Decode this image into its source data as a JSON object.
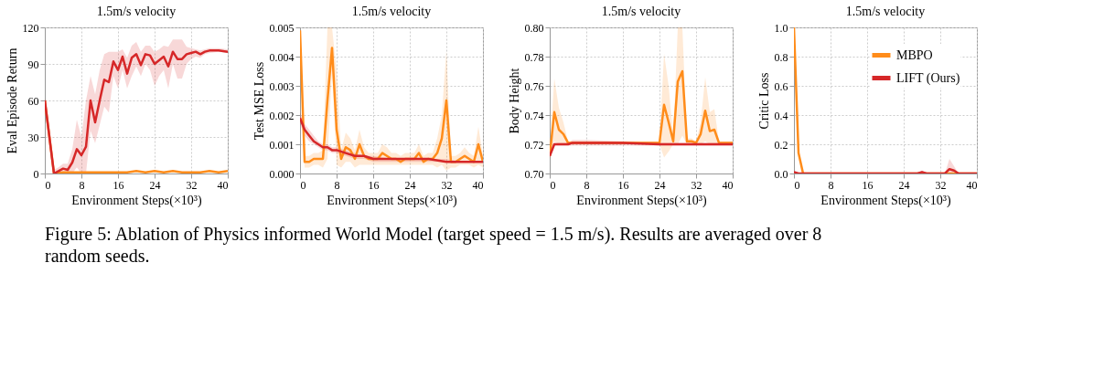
{
  "chart_data": [
    {
      "type": "line",
      "title": "1.5m/s velocity",
      "xlabel": "Environment Steps(×10³)",
      "ylabel": "Eval Episode Return",
      "xlim": [
        0,
        40
      ],
      "xticks": [
        0,
        8,
        16,
        24,
        32,
        40
      ],
      "ylim": [
        0,
        120
      ],
      "yticks": [
        0,
        30,
        60,
        90,
        120
      ],
      "grid": true,
      "marker": "none",
      "line_style": "solid",
      "legend": false,
      "annotations": [
        "Figure 5: Ablation of Physics informed World Model (target speed = 1.5 m/s). Results are averaged over 8 random seeds."
      ],
      "series": [
        {
          "color": "#ff8c1a",
          "x": [
            0,
            2,
            4,
            6,
            8,
            10,
            12,
            14,
            16,
            18,
            20,
            22,
            24,
            26,
            28,
            30,
            32,
            34,
            36,
            38,
            40
          ],
          "values": [
            60,
            0,
            1,
            1,
            1,
            1,
            1,
            1,
            1,
            1,
            2,
            1,
            2,
            1,
            2,
            1,
            1,
            1,
            2,
            1,
            2
          ]
        },
        {
          "color": "#d62728",
          "x": [
            0,
            2,
            3,
            4,
            5,
            6,
            7,
            8,
            9,
            10,
            11,
            12,
            13,
            14,
            15,
            16,
            17,
            18,
            19,
            20,
            21,
            22,
            23,
            24,
            25,
            26,
            27,
            28,
            29,
            30,
            31,
            32,
            33,
            34,
            35,
            36,
            38,
            40
          ],
          "values": [
            60,
            0,
            2,
            4,
            3,
            9,
            20,
            15,
            22,
            60,
            42,
            60,
            77,
            75,
            92,
            85,
            96,
            82,
            95,
            98,
            89,
            98,
            97,
            90,
            93,
            96,
            88,
            100,
            94,
            94,
            98,
            99,
            100,
            98,
            100,
            101,
            101,
            100
          ],
          "lower": [
            60,
            0,
            0,
            0,
            0,
            0,
            5,
            0,
            0,
            35,
            25,
            40,
            55,
            50,
            80,
            70,
            85,
            70,
            80,
            88,
            80,
            90,
            85,
            72,
            80,
            85,
            70,
            90,
            78,
            78,
            90,
            94,
            96,
            95,
            98,
            99,
            100,
            99
          ],
          "upper": [
            62,
            3,
            5,
            8,
            8,
            20,
            44,
            30,
            60,
            80,
            65,
            85,
            98,
            100,
            100,
            100,
            102,
            95,
            105,
            108,
            100,
            105,
            105,
            100,
            102,
            105,
            104,
            110,
            110,
            110,
            104,
            103,
            102,
            101,
            102,
            103,
            103,
            102
          ]
        }
      ]
    },
    {
      "type": "line",
      "title": "1.5m/s velocity",
      "xlabel": "Environment Steps(×10³)",
      "ylabel": "Test MSE Loss",
      "xlim": [
        0,
        40
      ],
      "xticks": [
        0,
        8,
        16,
        24,
        32,
        40
      ],
      "ylim": [
        0,
        0.005
      ],
      "yticks": [
        {
          "value": 0,
          "label": "0.000"
        },
        {
          "value": 0.001,
          "label": "0.001"
        },
        {
          "value": 0.002,
          "label": "0.002"
        },
        {
          "value": 0.003,
          "label": "0.003"
        },
        {
          "value": 0.004,
          "label": "0.004"
        },
        {
          "value": 0.005,
          "label": "0.005"
        }
      ],
      "grid": true,
      "marker": "none",
      "line_style": "solid",
      "legend": false,
      "series": [
        {
          "color": "#ff8c1a",
          "x": [
            0,
            1,
            2,
            3,
            4,
            5,
            6,
            7,
            8,
            9,
            10,
            11,
            12,
            13,
            14,
            15,
            16,
            17,
            18,
            19,
            20,
            21,
            22,
            23,
            24,
            25,
            26,
            27,
            28,
            29,
            30,
            31,
            32,
            33,
            34,
            35,
            36,
            37,
            38,
            39,
            40
          ],
          "values": [
            0.0049,
            0.0004,
            0.0004,
            0.0005,
            0.0005,
            0.0005,
            0.0025,
            0.0043,
            0.0015,
            0.0005,
            0.0009,
            0.0008,
            0.0005,
            0.001,
            0.0006,
            0.0005,
            0.0005,
            0.0005,
            0.0007,
            0.0006,
            0.0005,
            0.0005,
            0.0004,
            0.0005,
            0.0005,
            0.0005,
            0.0007,
            0.0004,
            0.0005,
            0.0005,
            0.0007,
            0.0012,
            0.0025,
            0.0004,
            0.0004,
            0.0005,
            0.0006,
            0.0005,
            0.0004,
            0.001,
            0.0004
          ],
          "lower": [
            0.0045,
            0.0002,
            0.0002,
            0.0003,
            0.0003,
            0.0002,
            0.0005,
            0.0035,
            0.0003,
            0.0002,
            0.0004,
            0.0004,
            0.0002,
            0.0003,
            0.0003,
            0.0003,
            0.0003,
            0.0003,
            0.0003,
            0.0003,
            0.0003,
            0.0003,
            0.0003,
            0.0003,
            0.0003,
            0.0003,
            0.0003,
            0.0003,
            0.0003,
            0.0003,
            0.0002,
            0.0003,
            0.0001,
            0.0002,
            0.0002,
            0.0003,
            0.0003,
            0.0003,
            0.0002,
            0.0003,
            0.0002
          ],
          "upper": [
            0.005,
            0.0006,
            0.0006,
            0.0007,
            0.0007,
            0.0008,
            0.005,
            0.005,
            0.0035,
            0.0008,
            0.0014,
            0.0012,
            0.0008,
            0.0015,
            0.0009,
            0.0007,
            0.0007,
            0.0007,
            0.001,
            0.0009,
            0.0007,
            0.0007,
            0.0006,
            0.0007,
            0.0007,
            0.0007,
            0.001,
            0.0006,
            0.0007,
            0.0007,
            0.0012,
            0.002,
            0.0042,
            0.0006,
            0.0006,
            0.0007,
            0.0009,
            0.0007,
            0.0006,
            0.0016,
            0.0006
          ]
        },
        {
          "color": "#d62728",
          "x": [
            0,
            1,
            2,
            3,
            4,
            5,
            6,
            7,
            8,
            10,
            12,
            14,
            16,
            20,
            24,
            28,
            32,
            36,
            40
          ],
          "values": [
            0.0019,
            0.0015,
            0.0013,
            0.0011,
            0.001,
            0.0009,
            0.0009,
            0.0008,
            0.0008,
            0.0007,
            0.0006,
            0.0006,
            0.0005,
            0.0005,
            0.0005,
            0.0005,
            0.0004,
            0.0004,
            0.0004
          ],
          "lower": [
            0.0017,
            0.0013,
            0.0011,
            0.001,
            0.0009,
            0.0008,
            0.0008,
            0.0007,
            0.0007,
            0.0006,
            0.0005,
            0.0005,
            0.0004,
            0.0004,
            0.0004,
            0.0004,
            0.0004,
            0.0004,
            0.0004
          ],
          "upper": [
            0.0021,
            0.0017,
            0.0015,
            0.0013,
            0.0011,
            0.001,
            0.001,
            0.0009,
            0.0009,
            0.0008,
            0.0007,
            0.0006,
            0.0006,
            0.0005,
            0.0005,
            0.0005,
            0.0005,
            0.0004,
            0.0004
          ]
        }
      ]
    },
    {
      "type": "line",
      "title": "1.5m/s velocity",
      "xlabel": "Environment Steps(×10³)",
      "ylabel": "Body Height",
      "xlim": [
        0,
        40
      ],
      "xticks": [
        0,
        8,
        16,
        24,
        32,
        40
      ],
      "ylim": [
        0.7,
        0.8
      ],
      "yticks": [
        {
          "value": 0.7,
          "label": "0.70"
        },
        {
          "value": 0.72,
          "label": "0.72"
        },
        {
          "value": 0.74,
          "label": "0.74"
        },
        {
          "value": 0.76,
          "label": "0.76"
        },
        {
          "value": 0.78,
          "label": "0.78"
        },
        {
          "value": 0.8,
          "label": "0.80"
        }
      ],
      "grid": true,
      "marker": "none",
      "line_style": "solid",
      "legend": false,
      "series": [
        {
          "color": "#ff8c1a",
          "x": [
            0,
            1,
            2,
            3,
            4,
            8,
            16,
            24,
            25,
            26,
            27,
            28,
            29,
            30,
            31,
            32,
            33,
            34,
            35,
            36,
            37,
            40
          ],
          "values": [
            0.712,
            0.742,
            0.73,
            0.727,
            0.721,
            0.721,
            0.721,
            0.721,
            0.747,
            0.735,
            0.722,
            0.763,
            0.77,
            0.722,
            0.722,
            0.721,
            0.727,
            0.743,
            0.729,
            0.73,
            0.721,
            0.721
          ],
          "lower": [
            0.71,
            0.722,
            0.72,
            0.72,
            0.72,
            0.72,
            0.72,
            0.72,
            0.711,
            0.715,
            0.72,
            0.72,
            0.726,
            0.72,
            0.72,
            0.72,
            0.72,
            0.722,
            0.72,
            0.72,
            0.72,
            0.72
          ],
          "upper": [
            0.714,
            0.765,
            0.745,
            0.735,
            0.722,
            0.722,
            0.722,
            0.722,
            0.782,
            0.76,
            0.724,
            0.8,
            0.8,
            0.724,
            0.724,
            0.722,
            0.735,
            0.766,
            0.742,
            0.744,
            0.722,
            0.722
          ]
        },
        {
          "color": "#d62728",
          "x": [
            0,
            1,
            4,
            5,
            8,
            16,
            24,
            32,
            40
          ],
          "values": [
            0.712,
            0.72,
            0.72,
            0.721,
            0.721,
            0.721,
            0.72,
            0.72,
            0.72
          ],
          "lower": [
            0.71,
            0.719,
            0.719,
            0.719,
            0.719,
            0.719,
            0.719,
            0.719,
            0.719
          ],
          "upper": [
            0.714,
            0.721,
            0.721,
            0.723,
            0.723,
            0.722,
            0.721,
            0.721,
            0.721
          ]
        }
      ]
    },
    {
      "type": "line",
      "title": "1.5m/s velocity",
      "xlabel": "Environment Steps(×10³)",
      "ylabel": "Critic Loss",
      "xlim": [
        0,
        40
      ],
      "xticks": [
        0,
        8,
        16,
        24,
        32,
        40
      ],
      "ylim": [
        0,
        1
      ],
      "yticks": [
        {
          "value": 0,
          "label": "0.0"
        },
        {
          "value": 0.2,
          "label": "0.2"
        },
        {
          "value": 0.4,
          "label": "0.4"
        },
        {
          "value": 0.6,
          "label": "0.6"
        },
        {
          "value": 0.8,
          "label": "0.8"
        },
        {
          "value": 1,
          "label": "1.0"
        }
      ],
      "grid": true,
      "marker": "none",
      "line_style": "solid",
      "legend": "top right",
      "series": [
        {
          "name": "MBPO",
          "color": "#ff8c1a",
          "x": [
            0,
            1,
            2,
            40
          ],
          "values": [
            1.0,
            0.14,
            0.0,
            0.0
          ]
        },
        {
          "name": "LIFT (Ours)",
          "color": "#d62728",
          "x": [
            0,
            1,
            27,
            28,
            29,
            33,
            34,
            35,
            36,
            40
          ],
          "values": [
            0.01,
            0.0,
            0.0,
            0.01,
            0.0,
            0.0,
            0.03,
            0.02,
            0.0,
            0.0
          ],
          "lower": [
            0.0,
            0.0,
            0.0,
            0.0,
            0.0,
            0.0,
            0.0,
            0.0,
            0.0,
            0.0
          ],
          "upper": [
            0.02,
            0.0,
            0.0,
            0.02,
            0.0,
            0.0,
            0.1,
            0.05,
            0.0,
            0.0
          ]
        }
      ]
    }
  ]
}
